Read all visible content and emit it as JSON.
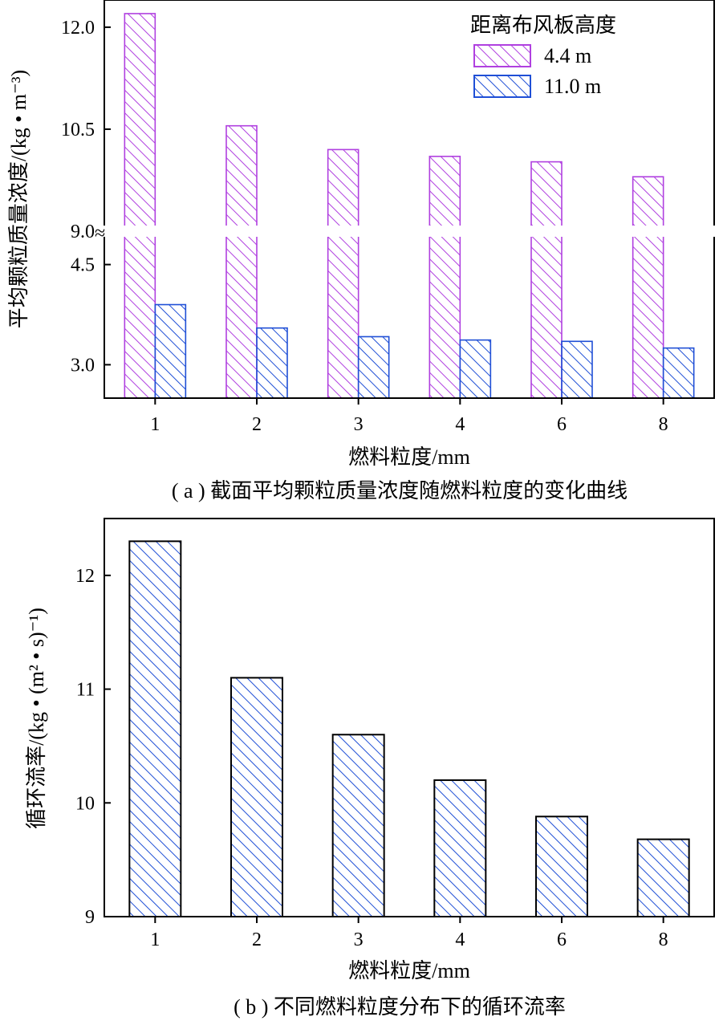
{
  "colors": {
    "series_4_4": "#b040e0",
    "series_11_0": "#1f4fd6",
    "axis": "#000000"
  },
  "chart_data": [
    {
      "type": "bar",
      "panel_caption": "( a ) 截面平均颗粒质量浓度随燃料粒度的变化曲线",
      "xlabel": "燃料粒度/mm",
      "ylabel": "平均颗粒质量浓度/(kg • m⁻³)",
      "categories": [
        "1",
        "2",
        "3",
        "4",
        "6",
        "8"
      ],
      "legend_title": "距离布风板高度",
      "legend_position": "top-right",
      "broken_axis": true,
      "upper_ylim": [
        9.0,
        12.4
      ],
      "upper_yticks": [
        "12.0",
        "10.5",
        "9.0"
      ],
      "lower_ylim": [
        2.5,
        5.0
      ],
      "lower_yticks": [
        "4.5",
        "3.0"
      ],
      "series": [
        {
          "name": "4.4 m",
          "values": [
            12.2,
            10.55,
            10.2,
            10.1,
            10.02,
            9.8
          ]
        },
        {
          "name": "11.0 m",
          "values": [
            3.9,
            3.55,
            3.42,
            3.37,
            3.35,
            3.25
          ]
        }
      ]
    },
    {
      "type": "bar",
      "panel_caption": "( b ) 不同燃料粒度分布下的循环流率",
      "xlabel": "燃料粒度/mm",
      "ylabel": "循环流率/(kg • (m² • s)⁻¹)",
      "categories": [
        "1",
        "2",
        "3",
        "4",
        "6",
        "8"
      ],
      "ylim": [
        9,
        12.5
      ],
      "yticks": [
        "9",
        "10",
        "11",
        "12"
      ],
      "values": [
        12.3,
        11.1,
        10.6,
        10.2,
        9.88,
        9.68
      ]
    }
  ]
}
